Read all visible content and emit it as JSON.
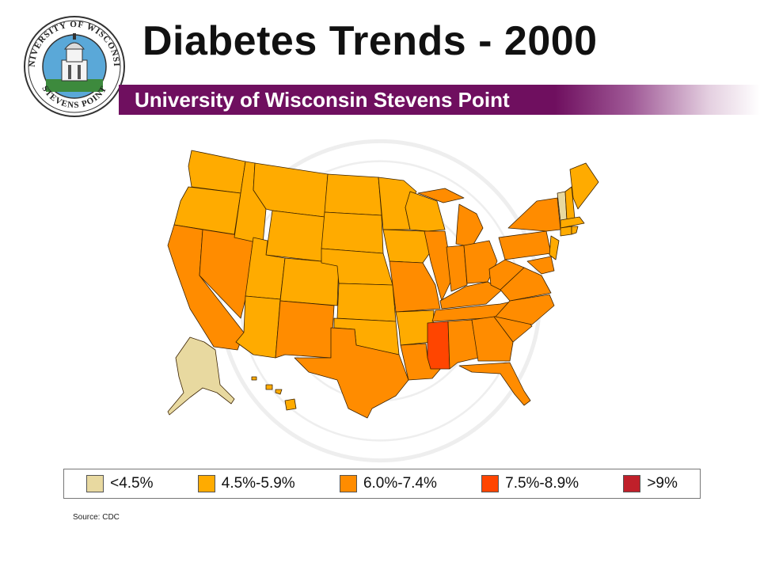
{
  "header": {
    "title": "Diabetes Trends - 2000",
    "subtitle": "University of Wisconsin Stevens Point"
  },
  "seal": {
    "top_text": "UNIVERSITY OF WISCONSIN",
    "bottom_text": "STEVENS POINT"
  },
  "colors": {
    "banner": "#6f0f5f",
    "under_4_5": "#e8d9a0",
    "range_4_5_5_9": "#ffab00",
    "range_6_0_7_4": "#ff8c00",
    "range_7_5_8_9": "#ff4500",
    "over_9": "#c0202a"
  },
  "legend": {
    "items": [
      {
        "label": "<4.5%",
        "color": "#e8d9a0"
      },
      {
        "label": "4.5%-5.9%",
        "color": "#ffab00"
      },
      {
        "label": "6.0%-7.4%",
        "color": "#ff8c00"
      },
      {
        "label": "7.5%-8.9%",
        "color": "#ff4500"
      },
      {
        "label": ">9%",
        "color": "#c0202a"
      }
    ]
  },
  "source": "Source: CDC"
}
